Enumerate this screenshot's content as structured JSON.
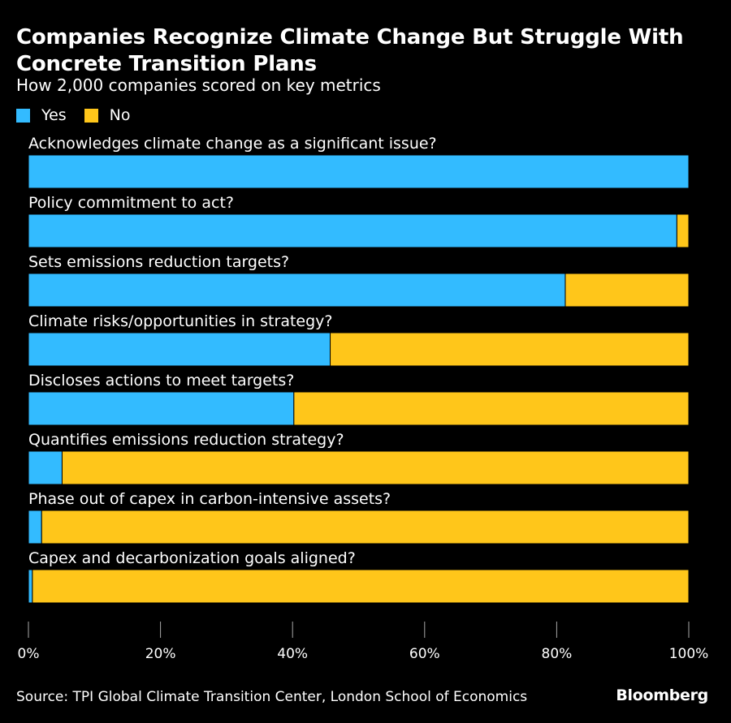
{
  "title": "Companies Recognize Climate Change But Struggle With Concrete Transition Plans",
  "subtitle": "How 2,000 companies scored on key metrics",
  "legend": [
    {
      "label": "Yes",
      "color": "#33bbff"
    },
    {
      "label": "No",
      "color": "#ffc61a"
    }
  ],
  "source": "Source: TPI Global Climate Transition Center, London School of Economics",
  "brand": "Bloomberg",
  "chart_data": {
    "type": "bar",
    "orientation": "horizontal",
    "stacked": true,
    "categories": [
      "Acknowledges climate change as a significant issue?",
      "Policy commitment to act?",
      "Sets emissions reduction targets?",
      "Climate risks/opportunities in strategy?",
      "Discloses actions to meet targets?",
      "Quantifies emissions reduction strategy?",
      "Phase out of capex in carbon-intensive assets?",
      "Capex and decarbonization goals aligned?"
    ],
    "series": [
      {
        "name": "Yes",
        "color": "#33bbff",
        "values": [
          100,
          98.2,
          81.3,
          45.7,
          40.2,
          5.1,
          2.0,
          0.6
        ]
      },
      {
        "name": "No",
        "color": "#ffc61a",
        "values": [
          0,
          1.8,
          18.7,
          54.3,
          59.8,
          94.9,
          98.0,
          99.4
        ]
      }
    ],
    "xlim": [
      0,
      100
    ],
    "xticks": [
      "0%",
      "20%",
      "40%",
      "60%",
      "80%",
      "100%"
    ],
    "grid": false,
    "legend_position": "top-left"
  }
}
